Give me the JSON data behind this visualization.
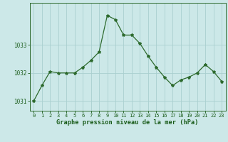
{
  "x": [
    0,
    1,
    2,
    3,
    4,
    5,
    6,
    7,
    8,
    9,
    10,
    11,
    12,
    13,
    14,
    15,
    16,
    17,
    18,
    19,
    20,
    21,
    22,
    23
  ],
  "y": [
    1031.0,
    1031.55,
    1032.05,
    1032.0,
    1032.0,
    1032.0,
    1032.2,
    1032.45,
    1032.75,
    1034.05,
    1033.9,
    1033.35,
    1033.35,
    1033.05,
    1032.6,
    1032.2,
    1031.85,
    1031.55,
    1031.75,
    1031.85,
    1032.0,
    1032.3,
    1032.05,
    1031.7
  ],
  "xlim": [
    -0.5,
    23.5
  ],
  "ylim": [
    1030.65,
    1034.5
  ],
  "yticks": [
    1031,
    1032,
    1033
  ],
  "xticks": [
    0,
    1,
    2,
    3,
    4,
    5,
    6,
    7,
    8,
    9,
    10,
    11,
    12,
    13,
    14,
    15,
    16,
    17,
    18,
    19,
    20,
    21,
    22,
    23
  ],
  "line_color": "#2d6a2d",
  "marker": "*",
  "marker_size": 3,
  "background_color": "#cce8e8",
  "grid_color": "#aacfcf",
  "xlabel": "Graphe pression niveau de la mer (hPa)",
  "xlabel_color": "#1a5c1a",
  "tick_color": "#1a5c1a",
  "spine_color": "#2d6a2d",
  "bottom_bar_color": "#2d6a2d",
  "tick_fontsize": 5.0,
  "xlabel_fontsize": 6.2
}
